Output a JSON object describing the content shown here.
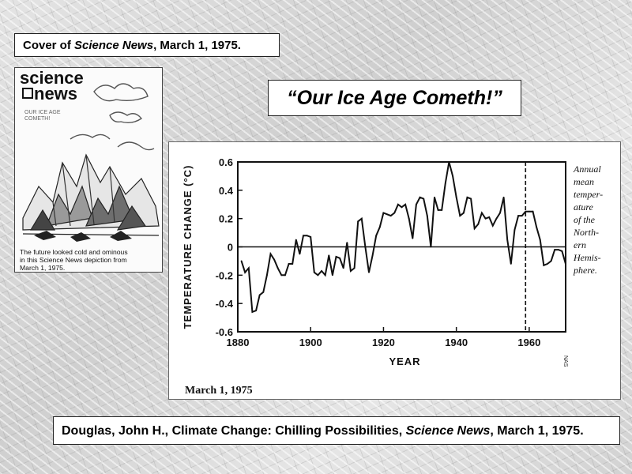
{
  "cover_caption": {
    "prefix": "Cover of ",
    "magazine": "Science News",
    "suffix": ", March 1, 1975."
  },
  "headline": "“Our Ice Age Cometh!”",
  "cover_image": {
    "masthead_line1": "science",
    "masthead_line2": "news",
    "cover_lines": [
      "OUR ICE AGE",
      "COMETH!"
    ],
    "caption_lines": [
      "The future looked cold and ominous",
      "in this Science News depiction from",
      "March 1, 1975."
    ]
  },
  "chart_data": {
    "type": "line",
    "title": "",
    "xlabel": "YEAR",
    "ylabel": "TEMPERATURE CHANGE (°C)",
    "xlim": [
      1880,
      1970
    ],
    "ylim": [
      -0.6,
      0.6
    ],
    "x_ticks": [
      1880,
      1900,
      1920,
      1940,
      1960
    ],
    "y_ticks": [
      0.6,
      0.4,
      0.2,
      0,
      -0.2,
      -0.4,
      -0.6
    ],
    "y_tick_labels": [
      "0.6",
      "0.4",
      "0.2",
      "0",
      "-0.2",
      "-0.4",
      "-0.6"
    ],
    "reference_line_y": 0,
    "dashed_vertical_x": 1959,
    "annotation_lines": [
      "Annual",
      "mean",
      "temper-",
      "ature",
      "of the",
      "North-",
      "ern",
      "Hemis-",
      "phere."
    ],
    "dateline": "March 1, 1975",
    "credit": "NAS",
    "series": [
      {
        "x": [
          1881,
          1882,
          1883,
          1884,
          1885,
          1886,
          1887,
          1888,
          1889,
          1890,
          1891,
          1892,
          1893,
          1894,
          1895,
          1896,
          1897,
          1898,
          1899,
          1900,
          1901,
          1902,
          1903,
          1904,
          1905,
          1906,
          1907,
          1908,
          1909,
          1910,
          1911,
          1912,
          1913,
          1914,
          1915,
          1916,
          1917,
          1918,
          1919,
          1920,
          1921,
          1922,
          1923,
          1924,
          1925,
          1926,
          1927,
          1928,
          1929,
          1930,
          1931,
          1932,
          1933,
          1934,
          1935,
          1936,
          1937,
          1938,
          1939,
          1940,
          1941,
          1942,
          1943,
          1944,
          1945,
          1946,
          1947,
          1948,
          1949,
          1950,
          1951,
          1952,
          1953,
          1954,
          1955,
          1956,
          1957,
          1958,
          1959,
          1960,
          1961,
          1962,
          1963,
          1964,
          1965,
          1966,
          1967,
          1968,
          1969,
          1970
        ],
        "values": [
          -0.1,
          -0.18,
          -0.15,
          -0.46,
          -0.45,
          -0.34,
          -0.32,
          -0.2,
          -0.05,
          -0.09,
          -0.15,
          -0.2,
          -0.2,
          -0.12,
          -0.12,
          0.05,
          -0.05,
          0.08,
          0.08,
          0.07,
          -0.18,
          -0.2,
          -0.17,
          -0.2,
          -0.06,
          -0.2,
          -0.07,
          -0.08,
          -0.15,
          0.03,
          -0.17,
          -0.15,
          0.18,
          0.2,
          0.0,
          -0.18,
          -0.06,
          0.08,
          0.14,
          0.24,
          0.23,
          0.22,
          0.24,
          0.3,
          0.28,
          0.3,
          0.2,
          0.06,
          0.3,
          0.35,
          0.34,
          0.22,
          0.0,
          0.35,
          0.26,
          0.26,
          0.45,
          0.6,
          0.5,
          0.35,
          0.22,
          0.24,
          0.35,
          0.34,
          0.13,
          0.16,
          0.24,
          0.2,
          0.21,
          0.15,
          0.2,
          0.24,
          0.35,
          0.05,
          -0.12,
          0.12,
          0.22,
          0.22,
          0.25,
          0.25,
          0.25,
          0.14,
          0.05,
          -0.13,
          -0.12,
          -0.1,
          -0.02,
          -0.02,
          -0.03,
          -0.12
        ]
      }
    ]
  }
}
